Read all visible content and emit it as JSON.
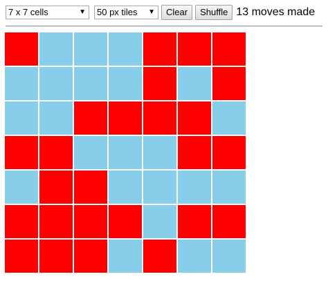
{
  "controls": {
    "grid_size_select": {
      "selected": "7 x 7 cells"
    },
    "tile_size_select": {
      "selected": "50 px tiles"
    },
    "clear_label": "Clear",
    "shuffle_label": "Shuffle",
    "moves_text": "13 moves made"
  },
  "icons": {
    "dropdown": "chevron-down-icon"
  },
  "colors": {
    "on": "#ff0000",
    "off": "#87ceeb",
    "divider": "#a0a0a0"
  },
  "board": {
    "columns": 7,
    "rows": 7,
    "cells": [
      [
        "on",
        "off",
        "off",
        "off",
        "on",
        "on",
        "on"
      ],
      [
        "off",
        "off",
        "off",
        "off",
        "on",
        "off",
        "on"
      ],
      [
        "off",
        "off",
        "on",
        "on",
        "on",
        "on",
        "off"
      ],
      [
        "on",
        "on",
        "off",
        "off",
        "off",
        "on",
        "on"
      ],
      [
        "off",
        "on",
        "on",
        "off",
        "off",
        "off",
        "off"
      ],
      [
        "on",
        "on",
        "on",
        "on",
        "off",
        "on",
        "on"
      ],
      [
        "on",
        "on",
        "on",
        "off",
        "on",
        "off",
        "off"
      ]
    ]
  }
}
